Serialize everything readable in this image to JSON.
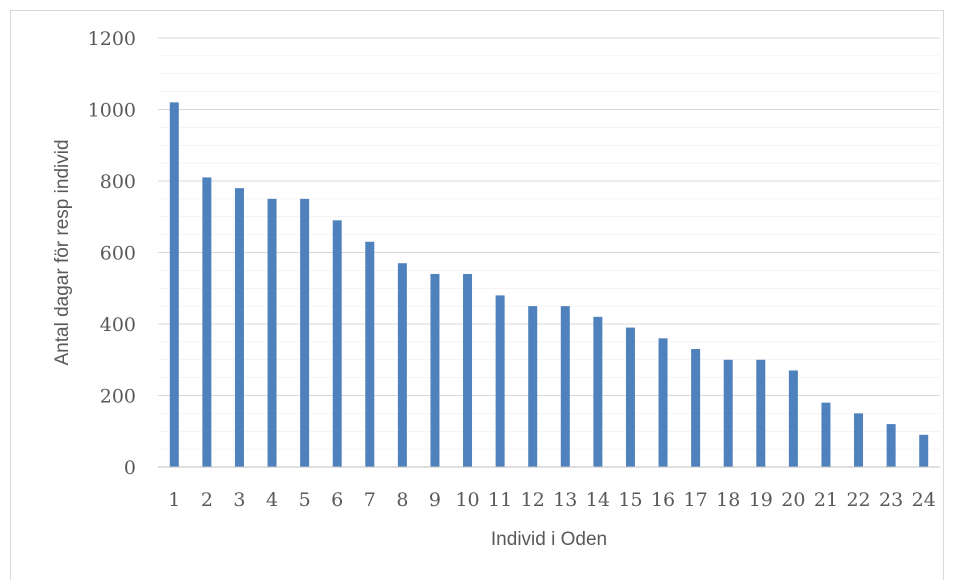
{
  "chart_data": {
    "type": "bar",
    "title": "",
    "xlabel": "Individ i Oden",
    "ylabel": "Antal dagar för resp individ",
    "categories": [
      "1",
      "2",
      "3",
      "4",
      "5",
      "6",
      "7",
      "8",
      "9",
      "10",
      "11",
      "12",
      "13",
      "14",
      "15",
      "16",
      "17",
      "18",
      "19",
      "20",
      "21",
      "22",
      "23",
      "24"
    ],
    "values": [
      1020,
      810,
      780,
      750,
      750,
      690,
      630,
      570,
      540,
      540,
      480,
      450,
      450,
      420,
      390,
      360,
      330,
      300,
      300,
      270,
      180,
      150,
      120,
      90
    ],
    "ylim": [
      0,
      1200
    ],
    "yticks": [
      0,
      200,
      400,
      600,
      800,
      1000,
      1200
    ],
    "grid": true,
    "legend": "none",
    "colors": {
      "bar": "#4f81bd",
      "gridline": "#d9d9d9",
      "axis": "#bfbfbf"
    }
  }
}
